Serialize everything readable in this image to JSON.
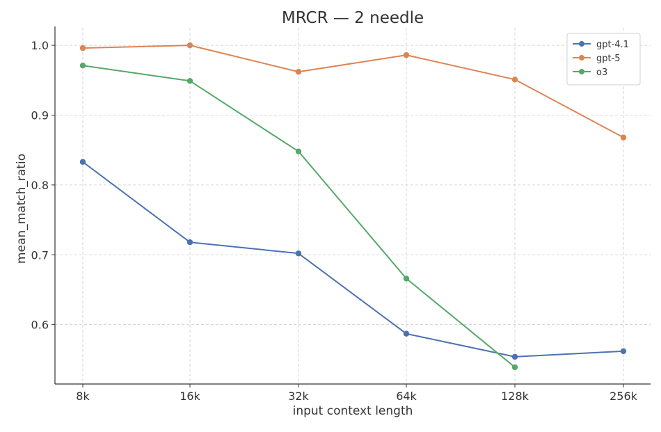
{
  "chart_data": {
    "type": "line",
    "title": "MRCR — 2 needle",
    "xlabel": "input context length",
    "ylabel": "mean_match_ratio",
    "categories": [
      "8k",
      "16k",
      "32k",
      "64k",
      "128k",
      "256k"
    ],
    "ylim": [
      0.515,
      1.025
    ],
    "yticks": [
      0.6,
      0.7,
      0.8,
      0.9,
      1.0
    ],
    "ytick_labels": [
      "0.6",
      "0.7",
      "0.8",
      "0.9",
      "1.0"
    ],
    "grid": true,
    "legend": "top-right",
    "series": [
      {
        "name": "gpt-4.1",
        "color": "#4c72b0",
        "values": [
          0.833,
          0.718,
          0.702,
          0.587,
          0.554,
          0.562
        ]
      },
      {
        "name": "gpt-5",
        "color": "#dd8452",
        "values": [
          0.996,
          1.0,
          0.962,
          0.986,
          0.951,
          0.868
        ]
      },
      {
        "name": "o3",
        "color": "#55a868",
        "values": [
          0.971,
          0.949,
          0.848,
          0.666,
          0.539,
          null
        ]
      }
    ]
  }
}
